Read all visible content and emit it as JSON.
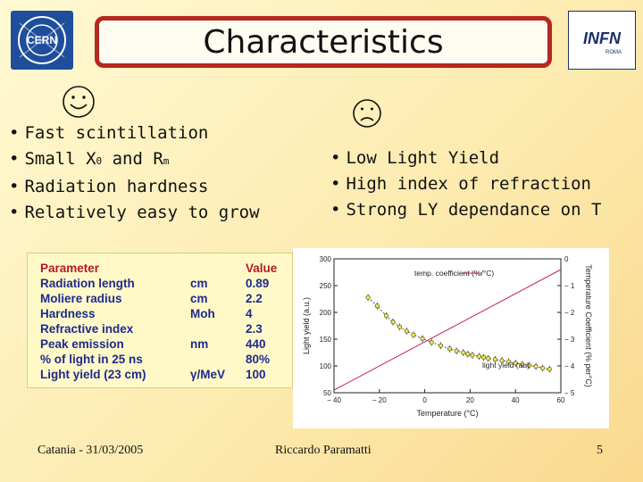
{
  "slide": {
    "title": "Characteristics",
    "pros_icon": "smiley-face-icon",
    "cons_icon": "frowning-face-icon",
    "pros": [
      {
        "text": "Fast scintillation"
      },
      {
        "text": "Small X",
        "sub1": "0",
        "mid": " and R",
        "sub2": "m"
      },
      {
        "text": "Radiation hardness"
      },
      {
        "text": "Relatively easy to grow"
      }
    ],
    "cons": [
      "Low Light Yield",
      "High index of refraction",
      "Strong LY dependance on T"
    ],
    "logos": {
      "left": "CERN",
      "right": "INFN",
      "right_sub": "ROMA"
    }
  },
  "parameters": {
    "headers": [
      "Parameter",
      "",
      "Value"
    ],
    "rows": [
      [
        "Radiation length",
        "cm",
        "0.89"
      ],
      [
        "Moliere radius",
        "cm",
        "2.2"
      ],
      [
        "Hardness",
        "Moh",
        "4"
      ],
      [
        "Refractive index",
        "",
        "2.3"
      ],
      [
        "Peak emission",
        "nm",
        "440"
      ],
      [
        "% of light in 25 ns",
        "",
        "80%"
      ],
      [
        "Light yield (23 cm)",
        "γ/MeV",
        "100"
      ]
    ]
  },
  "chart_data": {
    "type": "scatter",
    "xlabel": "Temperature (°C)",
    "ylabel_left": "Light yield (a.u.)",
    "ylabel_right": "Temperature Coefficient (% per°C)",
    "xlim": [
      -40,
      60
    ],
    "x_ticks": [
      "− 40",
      "− 20",
      "0",
      "20",
      "40",
      "60"
    ],
    "y_left_lim": [
      50,
      300
    ],
    "y_left_ticks": [
      "300",
      "250",
      "200",
      "150",
      "100",
      "50"
    ],
    "y_right_lim": [
      -5,
      0
    ],
    "y_right_ticks": [
      "0",
      "− 1",
      "− 2",
      "− 3",
      "− 4",
      "− 5"
    ],
    "annotations": {
      "temp_coefficient": "temp. coefficient (%/°C)",
      "light_yield": "light yield (au)"
    },
    "series": [
      {
        "name": "light yield (au)",
        "axis": "left",
        "x": [
          -25,
          -21,
          -17,
          -14,
          -11,
          -8,
          -5,
          -1,
          3,
          7,
          11,
          14,
          17,
          19,
          21,
          24,
          26,
          28,
          31,
          34,
          37,
          40,
          43,
          46,
          49,
          52,
          55
        ],
        "y": [
          228,
          212,
          194,
          182,
          173,
          165,
          158,
          151,
          144,
          138,
          132,
          128,
          125,
          122,
          120,
          118,
          116,
          114,
          112,
          110,
          108,
          105,
          103,
          101,
          99,
          96,
          94
        ]
      },
      {
        "name": "temp. coefficient (%/°C)",
        "axis": "right",
        "x": [
          -40,
          60
        ],
        "y": [
          -4.9,
          -0.4
        ]
      }
    ]
  },
  "footer": {
    "left": "Catania - 31/03/2005",
    "center": "Riccardo Paramatti",
    "page": "5"
  }
}
